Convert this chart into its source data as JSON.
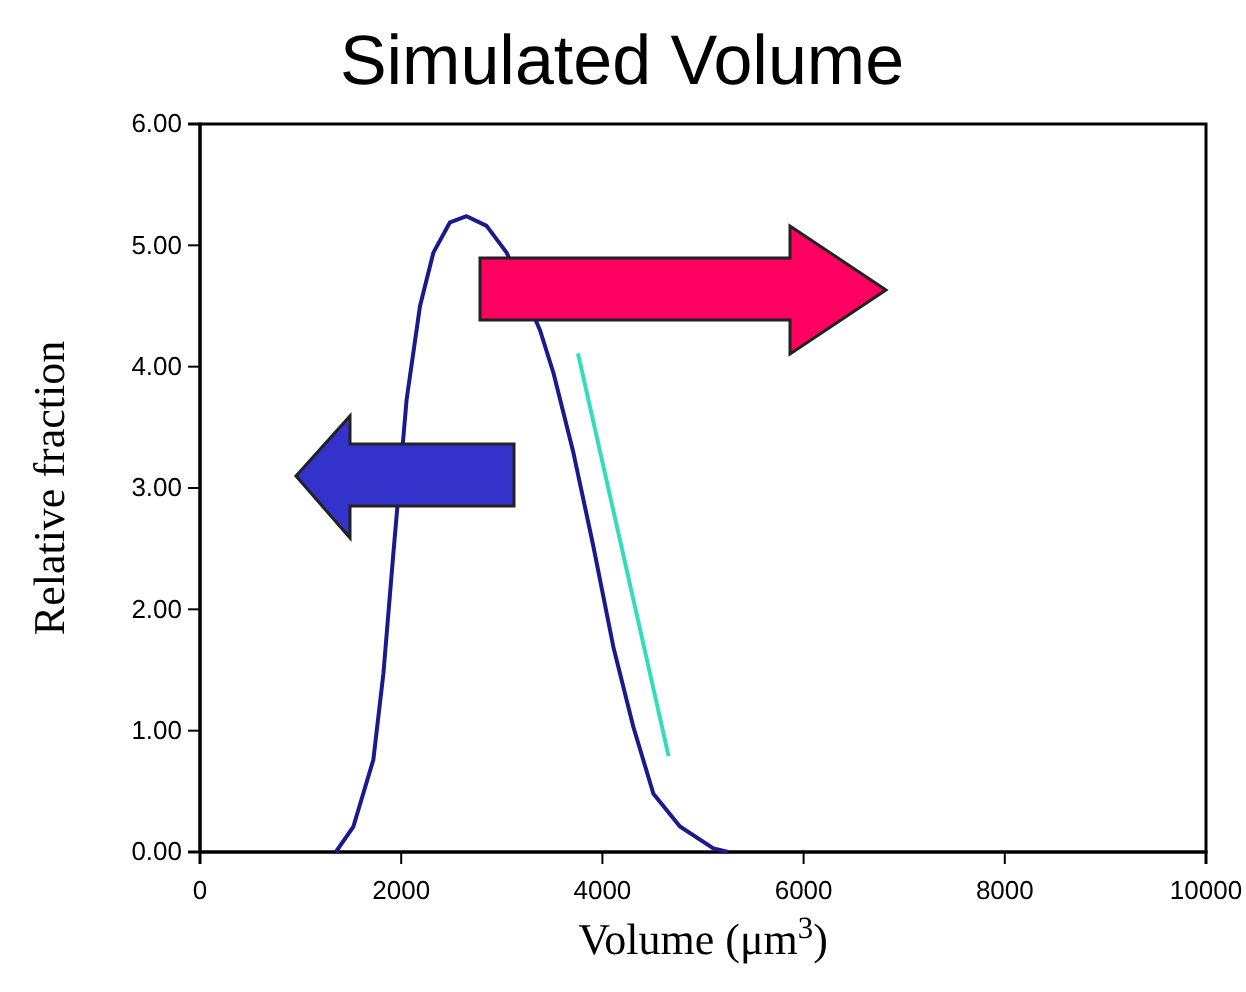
{
  "chart_data": {
    "type": "line",
    "title": "Simulated Volume",
    "xlabel": "Volume (μm$^{3}$)",
    "ylabel": "Relative fraction",
    "xlim": [
      0,
      10000
    ],
    "xticks": [
      0,
      2000,
      4000,
      6000,
      8000,
      10000
    ],
    "ylim": [
      0,
      6
    ],
    "yticks": [
      {
        "value": 0,
        "label": "0.00"
      },
      {
        "value": 1,
        "label": "1.00"
      },
      {
        "value": 2,
        "label": "2.00"
      },
      {
        "value": 3,
        "label": "3.00"
      },
      {
        "value": 4,
        "label": "4.00"
      },
      {
        "value": 5,
        "label": "5.00"
      },
      {
        "value": 6,
        "label": "6.00"
      }
    ],
    "grid": false,
    "marker": "none",
    "line_style": "solid",
    "series": [
      {
        "color": "#1a1a8c",
        "x": [
          1350,
          1525,
          1723,
          1823,
          1922,
          2054,
          2187,
          2320,
          2485,
          2650,
          2849,
          3048,
          3380,
          3513,
          3712,
          3910,
          4109,
          4308,
          4507,
          4771,
          5103,
          5250
        ],
        "values": [
          0,
          0.21,
          0.76,
          1.47,
          2.46,
          3.73,
          4.5,
          4.94,
          5.19,
          5.24,
          5.16,
          4.94,
          4.3,
          3.95,
          3.29,
          2.52,
          1.69,
          1.03,
          0.48,
          0.21,
          0.03,
          0
        ]
      },
      {
        "color": "#33ddbb",
        "x": [
          3757,
          4658
        ],
        "values": [
          4.11,
          0.79
        ]
      }
    ]
  }
}
